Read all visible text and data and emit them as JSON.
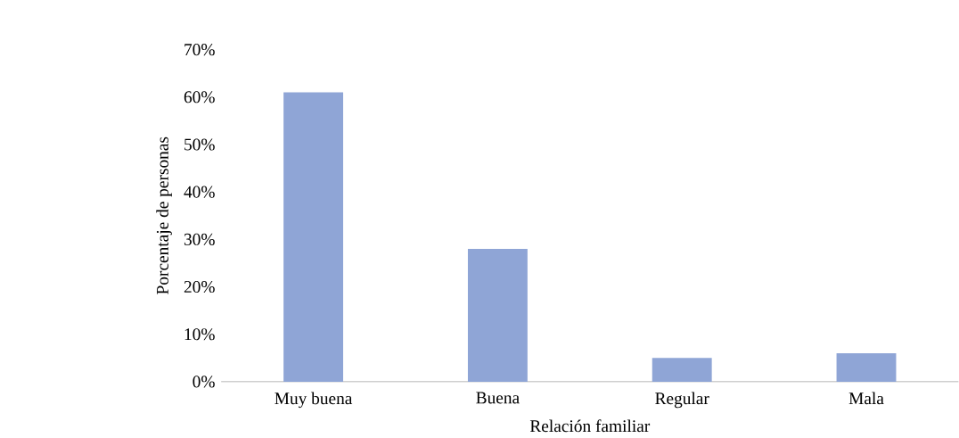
{
  "chart_data": {
    "type": "bar",
    "xlabel": "Relación familiar",
    "ylabel": "Porcentaje de personas",
    "categories": [
      "Muy buena",
      "Buena",
      "Regular",
      "Mala"
    ],
    "values": [
      61,
      28,
      5,
      6
    ],
    "color": "#8fa5d6",
    "ylim": [
      0,
      70
    ],
    "yticks": [
      {
        "value": 0,
        "label": "0%"
      },
      {
        "value": 10,
        "label": "10%"
      },
      {
        "value": 20,
        "label": "20%"
      },
      {
        "value": 30,
        "label": "30%"
      },
      {
        "value": 40,
        "label": "40%"
      },
      {
        "value": 50,
        "label": "50%"
      },
      {
        "value": 60,
        "label": "60%"
      },
      {
        "value": 70,
        "label": "70%"
      }
    ],
    "grid": false
  }
}
